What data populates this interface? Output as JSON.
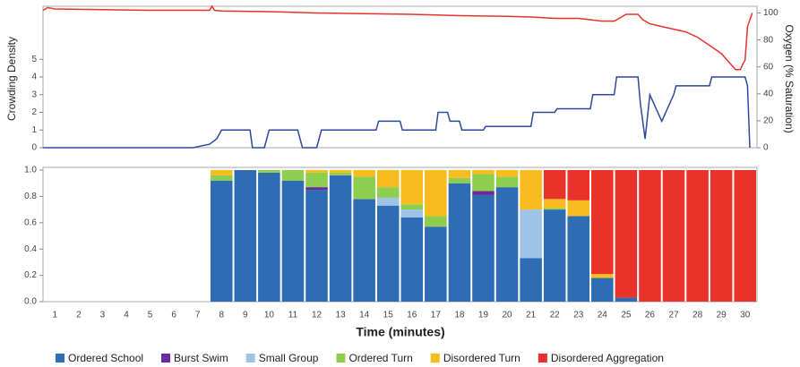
{
  "chart_data": [
    {
      "type": "line",
      "ylabel": "Crowding Density",
      "y2label": "Oxygen (% Saturation)",
      "xlim": [
        0.5,
        30.5
      ],
      "ylim": [
        0,
        8
      ],
      "yticks": [
        0,
        1,
        2,
        3,
        4,
        5
      ],
      "y2lim": [
        0,
        105
      ],
      "y2ticks": [
        0,
        20,
        40,
        60,
        80,
        100
      ],
      "series": [
        {
          "color": "#e8322a",
          "axis": "y2",
          "x": [
            0.5,
            0.7,
            1,
            3,
            5,
            7.5,
            7.6,
            7.7,
            8,
            10,
            12,
            14,
            16,
            18,
            20,
            21,
            22,
            23,
            24,
            24.5,
            25,
            25.5,
            25.7,
            26,
            26.5,
            27,
            27.5,
            28,
            28.5,
            29,
            29.3,
            29.6,
            29.8,
            29.9,
            30,
            30.1,
            30.3
          ],
          "values": [
            102,
            104,
            103,
            102.5,
            102,
            102,
            105,
            102,
            101.5,
            101,
            100,
            99.5,
            99,
            98,
            97.5,
            97,
            96,
            96,
            94,
            94,
            99,
            99,
            95,
            92,
            90,
            88,
            86,
            82,
            76,
            70,
            64,
            58,
            58,
            62,
            65,
            90,
            100
          ]
        },
        {
          "color": "#2c4a9c",
          "axis": "y",
          "x": [
            0.5,
            6.8,
            7.5,
            7.8,
            8,
            9.2,
            9.3,
            9.8,
            10,
            11.2,
            11.4,
            12,
            12.2,
            14.5,
            14.6,
            15.5,
            15.6,
            17,
            17.1,
            17.5,
            17.6,
            18,
            18.1,
            19,
            19.1,
            21,
            21.1,
            22,
            22.1,
            23.5,
            23.6,
            24.5,
            24.6,
            25.5,
            25.6,
            25.8,
            26,
            26.5,
            27,
            27.1,
            28.5,
            28.6,
            30,
            30.1,
            30.2
          ],
          "values": [
            0,
            0,
            0.2,
            0.5,
            1,
            1,
            0,
            0,
            1,
            1,
            0,
            0,
            1,
            1,
            1.5,
            1.5,
            1,
            1,
            2,
            2,
            1.5,
            1.5,
            1,
            1,
            1.2,
            1.2,
            2,
            2,
            2.2,
            2.2,
            3,
            3,
            4,
            4,
            2.5,
            0.5,
            3,
            1.5,
            3,
            3.5,
            3.5,
            4,
            4,
            3.5,
            0
          ]
        }
      ]
    },
    {
      "type": "bar",
      "stacked": true,
      "xlabel": "Time (minutes)",
      "categories": [
        "1",
        "2",
        "3",
        "4",
        "5",
        "6",
        "7",
        "8",
        "9",
        "10",
        "11",
        "12",
        "13",
        "14",
        "15",
        "16",
        "17",
        "18",
        "19",
        "20",
        "21",
        "22",
        "23",
        "24",
        "25",
        "26",
        "27",
        "28",
        "29",
        "30"
      ],
      "ylim": [
        0,
        1
      ],
      "yticks": [
        {
          "value": 0,
          "label": "0.0"
        },
        {
          "value": 0.2,
          "label": "0.2"
        },
        {
          "value": 0.4,
          "label": "0.4"
        },
        {
          "value": 0.6,
          "label": "0.6"
        },
        {
          "value": 0.8,
          "label": "0.8"
        },
        {
          "value": 1,
          "label": "1.0"
        }
      ],
      "series": [
        {
          "name": "Ordered School",
          "color": "#2e6db4",
          "values": [
            0,
            0,
            0,
            0,
            0,
            0,
            0,
            0.92,
            1,
            0.98,
            0.92,
            0.85,
            0.96,
            0.78,
            0.73,
            0.64,
            0.57,
            0.9,
            0.81,
            0.87,
            0.33,
            0.7,
            0.65,
            0.18,
            0.03,
            0,
            0,
            0,
            0,
            0
          ]
        },
        {
          "name": "Burst Swim",
          "color": "#6a2a9c",
          "values": [
            0,
            0,
            0,
            0,
            0,
            0,
            0,
            0,
            0,
            0,
            0,
            0.02,
            0,
            0,
            0,
            0,
            0,
            0,
            0.03,
            0,
            0,
            0,
            0,
            0,
            0,
            0,
            0,
            0,
            0,
            0
          ]
        },
        {
          "name": "Small Group",
          "color": "#9fc3e6",
          "values": [
            0,
            0,
            0,
            0,
            0,
            0,
            0,
            0,
            0,
            0,
            0,
            0,
            0,
            0,
            0.06,
            0.06,
            0,
            0,
            0,
            0,
            0.37,
            0,
            0,
            0,
            0,
            0,
            0,
            0,
            0,
            0
          ]
        },
        {
          "name": "Ordered Turn",
          "color": "#8dce4f",
          "values": [
            0,
            0,
            0,
            0,
            0,
            0,
            0,
            0.04,
            0,
            0.02,
            0.08,
            0.11,
            0.02,
            0.17,
            0.08,
            0.04,
            0.08,
            0.04,
            0.13,
            0.08,
            0,
            0.01,
            0,
            0,
            0,
            0,
            0,
            0,
            0,
            0
          ]
        },
        {
          "name": "Disordered Turn",
          "color": "#f9bb1e",
          "values": [
            0,
            0,
            0,
            0,
            0,
            0,
            0,
            0.04,
            0,
            0,
            0,
            0.02,
            0.02,
            0.05,
            0.13,
            0.26,
            0.35,
            0.06,
            0.03,
            0.05,
            0.3,
            0.07,
            0.12,
            0.03,
            0,
            0,
            0,
            0,
            0,
            0
          ]
        },
        {
          "name": "Disordered Aggregation",
          "color": "#e8322a",
          "values": [
            0,
            0,
            0,
            0,
            0,
            0,
            0,
            0,
            0,
            0,
            0,
            0,
            0,
            0,
            0,
            0,
            0,
            0,
            0,
            0,
            0,
            0.22,
            0.23,
            0.79,
            0.97,
            1,
            1,
            1,
            1,
            1
          ]
        }
      ]
    }
  ]
}
